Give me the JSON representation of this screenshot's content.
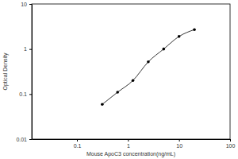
{
  "chart_data": {
    "type": "line",
    "x_label": "Mouse ApoC3 concentration(ng/mL)",
    "y_label": "Optical Density",
    "x": [
      0.3125,
      0.625,
      1.25,
      2.5,
      5,
      10,
      20
    ],
    "values": [
      0.059,
      0.11,
      0.2,
      0.52,
      1.0,
      1.9,
      2.7
    ],
    "color": "#000000",
    "marker": "circle",
    "log": true,
    "xlim": [
      0.013,
      100
    ],
    "xticks": [
      0.1,
      1,
      10,
      100
    ],
    "ylim": [
      0.01,
      10
    ],
    "yticks": [
      0.01,
      0.1,
      1,
      10
    ]
  }
}
